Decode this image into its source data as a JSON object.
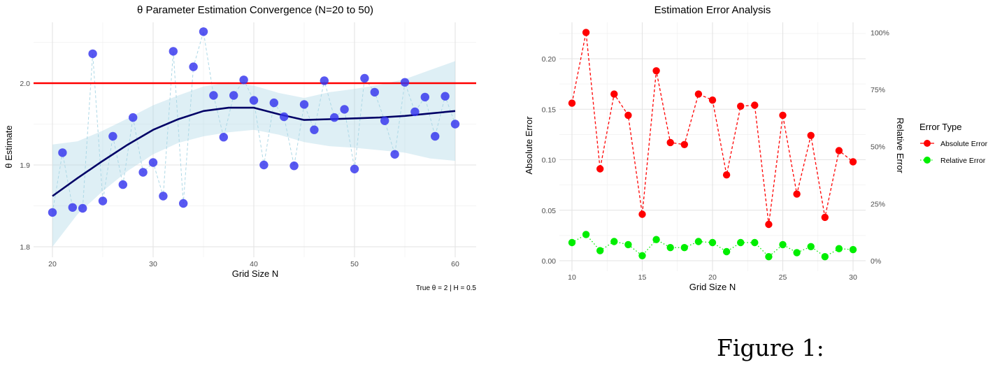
{
  "figure_caption": "Figure 1:",
  "chart_data": [
    {
      "type": "scatter",
      "title": "θ Parameter Estimation Convergence (N=20 to 50)",
      "xlabel": "Grid Size N",
      "ylabel": "θ Estimate",
      "caption": "True θ = 2 | H = 0.5",
      "xlim": [
        18.2,
        61.5
      ],
      "ylim": [
        1.79,
        2.085
      ],
      "xticks": [
        20,
        30,
        40,
        50,
        60
      ],
      "xtick_labels": [
        "20",
        "30",
        "40",
        "50",
        "60"
      ],
      "yticks": [
        1.8,
        1.9,
        2.0
      ],
      "ytick_labels": [
        "1.8",
        "1.9",
        "2.0"
      ],
      "grid": true,
      "reference_line": {
        "y": 2.0,
        "color": "#ff0000"
      },
      "points_color": "#3333ee",
      "x": [
        20,
        21,
        22,
        23,
        24,
        25,
        26,
        27,
        28,
        29,
        30,
        31,
        32,
        33,
        34,
        35,
        36,
        37,
        38,
        39,
        40,
        41,
        42,
        43,
        44,
        45,
        46,
        47,
        48,
        49,
        50,
        51,
        52,
        53,
        54,
        55,
        56,
        57,
        58,
        59,
        60
      ],
      "y": [
        1.842,
        1.915,
        1.848,
        1.847,
        2.036,
        1.856,
        1.935,
        1.876,
        1.958,
        1.891,
        1.903,
        1.862,
        2.039,
        1.853,
        2.02,
        2.063,
        1.985,
        1.934,
        1.985,
        2.004,
        1.979,
        1.9,
        1.976,
        1.959,
        1.899,
        1.974,
        1.943,
        2.003,
        1.958,
        1.968,
        1.895,
        2.006,
        1.989,
        1.954,
        1.913,
        2.001,
        1.965,
        1.983,
        1.935,
        1.984,
        1.95
      ],
      "smooth": {
        "color": "#000066",
        "band_color": "#add8e6",
        "x": [
          20,
          22.5,
          25,
          27.5,
          30,
          32.5,
          35,
          37.5,
          40,
          42.5,
          45,
          47.5,
          50,
          52.5,
          55,
          57.5,
          60
        ],
        "y": [
          1.862,
          1.884,
          1.905,
          1.925,
          1.943,
          1.956,
          1.966,
          1.97,
          1.97,
          1.962,
          1.955,
          1.956,
          1.957,
          1.958,
          1.96,
          1.963,
          1.966
        ],
        "lower": [
          1.8,
          1.84,
          1.868,
          1.893,
          1.913,
          1.927,
          1.935,
          1.94,
          1.943,
          1.937,
          1.928,
          1.923,
          1.921,
          1.918,
          1.915,
          1.908,
          1.905
        ],
        "upper": [
          1.925,
          1.929,
          1.942,
          1.957,
          1.973,
          1.985,
          1.996,
          2.001,
          1.997,
          1.988,
          1.982,
          1.989,
          1.993,
          1.998,
          2.005,
          2.016,
          2.027
        ]
      }
    },
    {
      "type": "line",
      "title": "Estimation Error Analysis",
      "xlabel": "Grid Size N",
      "ylabel": "Absolute Error",
      "ylabel_right": "Relative Error",
      "xlim": [
        9.1,
        30.9
      ],
      "ylim": [
        -0.011,
        0.237
      ],
      "xticks": [
        10,
        15,
        20,
        25,
        30
      ],
      "xtick_labels": [
        "10",
        "15",
        "20",
        "25",
        "30"
      ],
      "yticks": [
        0.0,
        0.05,
        0.1,
        0.15,
        0.2
      ],
      "ytick_labels": [
        "0.00",
        "0.05",
        "0.10",
        "0.15",
        "0.20"
      ],
      "yticks_right_values": [
        0.0,
        0.0565,
        0.113,
        0.1695,
        0.226
      ],
      "ytick_right_labels": [
        "0%",
        "25%",
        "50%",
        "75%",
        "100%"
      ],
      "grid": true,
      "legend": {
        "title": "Error Type",
        "placement": "right"
      },
      "x": [
        10,
        11,
        12,
        13,
        14,
        15,
        16,
        17,
        18,
        19,
        20,
        21,
        22,
        23,
        24,
        25,
        26,
        27,
        28,
        29,
        30
      ],
      "series": [
        {
          "name": "Absolute Error",
          "color": "#ff0000",
          "linestyle": "dashed",
          "values": [
            0.156,
            0.226,
            0.091,
            0.165,
            0.144,
            0.046,
            0.188,
            0.117,
            0.115,
            0.165,
            0.159,
            0.085,
            0.153,
            0.154,
            0.036,
            0.144,
            0.066,
            0.124,
            0.043,
            0.109,
            0.098
          ]
        },
        {
          "name": "Relative Error",
          "color": "#00ee00",
          "linestyle": "dotted",
          "values": [
            0.018,
            0.026,
            0.01,
            0.019,
            0.016,
            0.005,
            0.021,
            0.013,
            0.013,
            0.019,
            0.018,
            0.009,
            0.018,
            0.018,
            0.004,
            0.016,
            0.008,
            0.014,
            0.004,
            0.012,
            0.011
          ]
        }
      ]
    }
  ]
}
